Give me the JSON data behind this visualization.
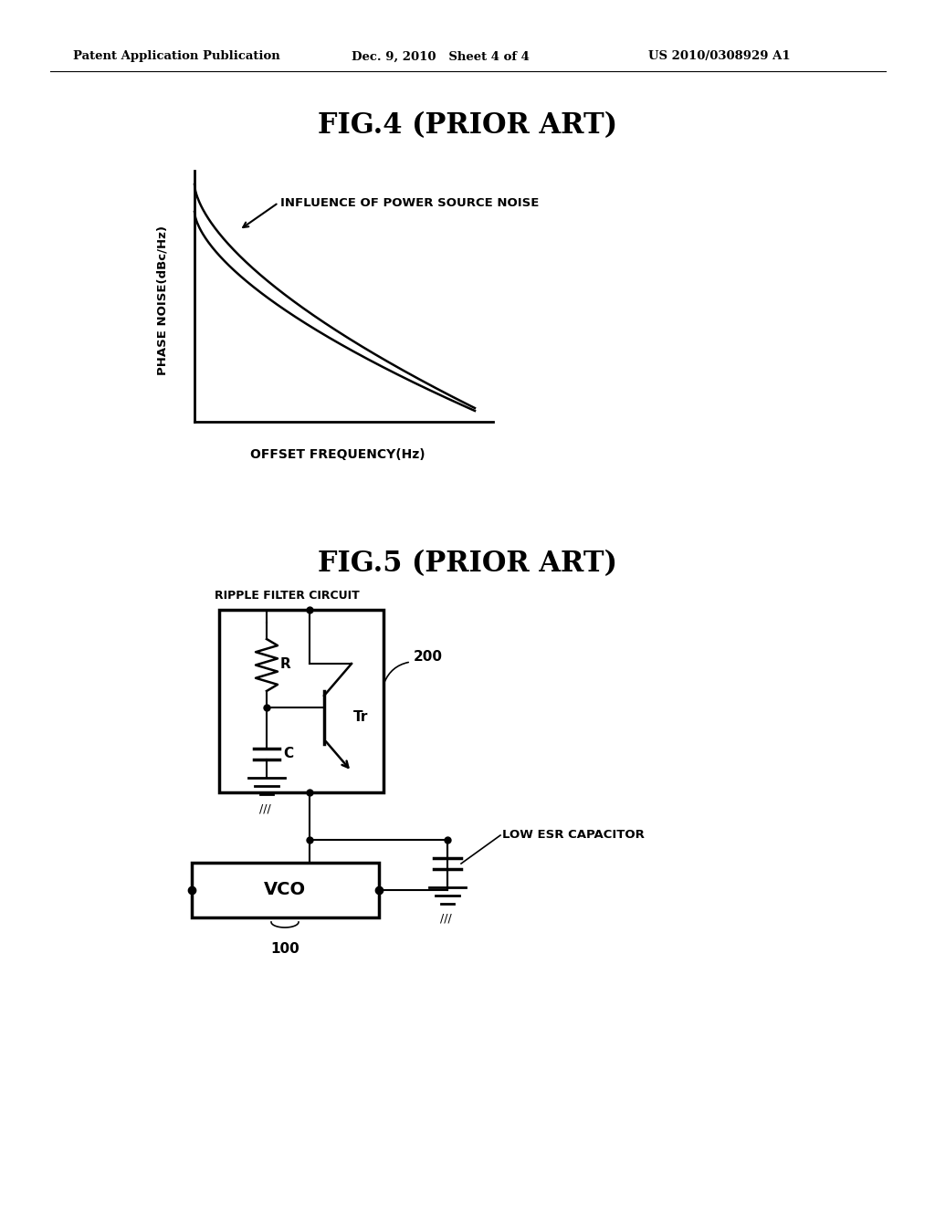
{
  "bg_color": "#ffffff",
  "header_left": "Patent Application Publication",
  "header_center": "Dec. 9, 2010   Sheet 4 of 4",
  "header_right": "US 2010/0308929 A1",
  "fig4_title": "FIG.4 (PRIOR ART)",
  "fig4_xlabel": "OFFSET FREQUENCY(Hz)",
  "fig4_ylabel": "PHASE NOISE(dBc/Hz)",
  "fig4_annotation": "INFLUENCE OF POWER SOURCE NOISE",
  "fig5_title": "FIG.5 (PRIOR ART)",
  "fig5_ripple_label": "RIPPLE FILTER CIRCUIT",
  "fig5_200_label": "200",
  "fig5_vco_label": "VCO",
  "fig5_100_label": "100",
  "fig5_low_esr_label": "LOW ESR CAPACITOR",
  "fig5_R_label": "R",
  "fig5_Tr_label": "Tr",
  "fig5_C_label": "C"
}
